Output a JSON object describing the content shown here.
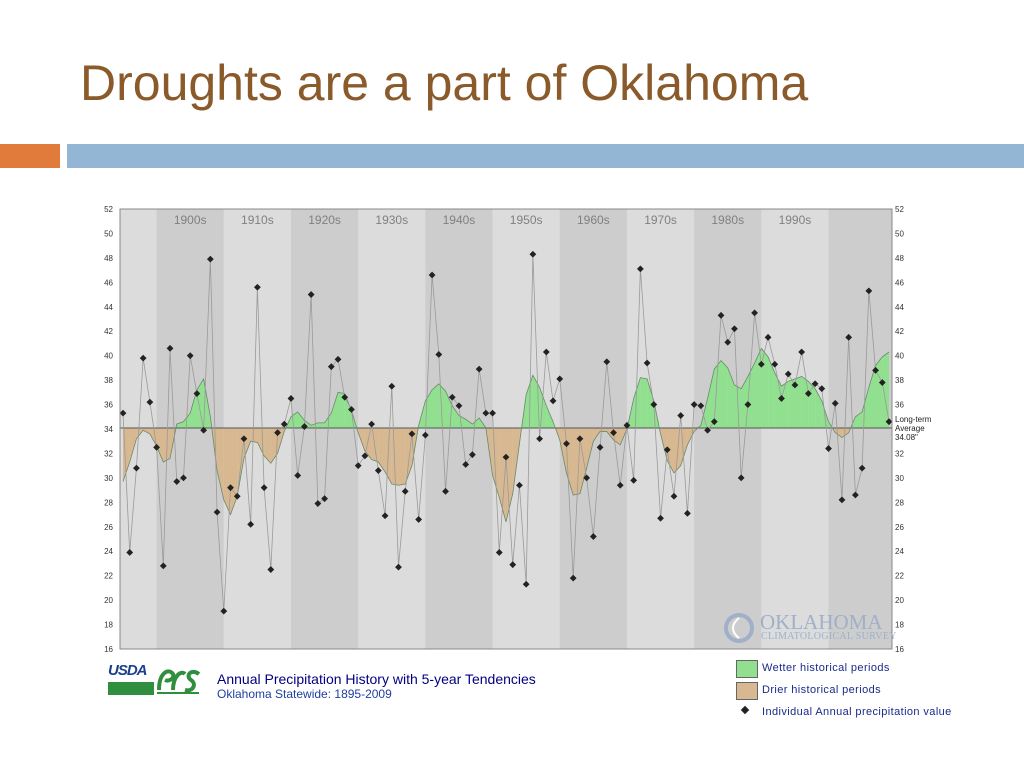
{
  "slide": {
    "title": "Droughts are a part of Oklahoma"
  },
  "colors": {
    "title": "#8b5a2b",
    "accent_orange": "#e07b3c",
    "accent_blue": "#93b6d4",
    "wet_fill": "#90e090",
    "dry_fill": "#d8b890",
    "band_dark": "#cdcdcd",
    "band_light": "#dcdcdc"
  },
  "chart_data": {
    "type": "line",
    "title": "Annual Precipitation History with 5-year Tendencies",
    "subtitle": "Oklahoma Statewide:  1895-2009",
    "xlabel": "",
    "ylabel": "",
    "xlim": [
      1895,
      2009
    ],
    "ylim": [
      16,
      52
    ],
    "y_ticks": [
      16,
      18,
      20,
      22,
      24,
      26,
      28,
      30,
      32,
      34,
      36,
      38,
      40,
      42,
      44,
      46,
      48,
      50,
      52
    ],
    "grid": false,
    "decade_bands": [
      {
        "label": "1900s",
        "start": 1900
      },
      {
        "label": "1910s",
        "start": 1910
      },
      {
        "label": "1920s",
        "start": 1920
      },
      {
        "label": "1930s",
        "start": 1930
      },
      {
        "label": "1940s",
        "start": 1940
      },
      {
        "label": "1950s",
        "start": 1950
      },
      {
        "label": "1960s",
        "start": 1960
      },
      {
        "label": "1970s",
        "start": 1970
      },
      {
        "label": "1980s",
        "start": 1980
      },
      {
        "label": "1990s",
        "start": 1990
      },
      {
        "label": "",
        "start": 2000
      }
    ],
    "average": {
      "value": 34.08,
      "label_lines": [
        "Long-term",
        "Average",
        "34.08\""
      ]
    },
    "series": [
      {
        "name": "Individual Annual precipitation value",
        "x": [
          1895,
          1896,
          1897,
          1898,
          1899,
          1900,
          1901,
          1902,
          1903,
          1904,
          1905,
          1906,
          1907,
          1908,
          1909,
          1910,
          1911,
          1912,
          1913,
          1914,
          1915,
          1916,
          1917,
          1918,
          1919,
          1920,
          1921,
          1922,
          1923,
          1924,
          1925,
          1926,
          1927,
          1928,
          1929,
          1930,
          1931,
          1932,
          1933,
          1934,
          1935,
          1936,
          1937,
          1938,
          1939,
          1940,
          1941,
          1942,
          1943,
          1944,
          1945,
          1946,
          1947,
          1948,
          1949,
          1950,
          1951,
          1952,
          1953,
          1954,
          1955,
          1956,
          1957,
          1958,
          1959,
          1960,
          1961,
          1962,
          1963,
          1964,
          1965,
          1966,
          1967,
          1968,
          1969,
          1970,
          1971,
          1972,
          1973,
          1974,
          1975,
          1976,
          1977,
          1978,
          1979,
          1980,
          1981,
          1982,
          1983,
          1984,
          1985,
          1986,
          1987,
          1988,
          1989,
          1990,
          1991,
          1992,
          1993,
          1994,
          1995,
          1996,
          1997,
          1998,
          1999,
          2000,
          2001,
          2002,
          2003,
          2004,
          2005,
          2006,
          2007,
          2008,
          2009
        ],
        "values": [
          35.3,
          23.9,
          30.8,
          39.8,
          36.2,
          32.5,
          22.8,
          40.6,
          29.7,
          30.0,
          40.0,
          36.9,
          33.9,
          47.9,
          27.2,
          19.1,
          29.2,
          28.5,
          33.2,
          26.2,
          45.6,
          29.2,
          22.5,
          33.7,
          34.4,
          36.5,
          30.2,
          34.2,
          45.0,
          27.9,
          28.3,
          39.1,
          39.7,
          36.6,
          35.6,
          31.0,
          31.8,
          34.4,
          30.6,
          26.9,
          37.5,
          22.7,
          28.9,
          33.6,
          26.6,
          33.5,
          46.6,
          40.1,
          28.9,
          36.6,
          35.9,
          31.1,
          31.9,
          38.9,
          35.3,
          35.3,
          23.9,
          31.7,
          22.9,
          29.4,
          21.3,
          48.3,
          33.2,
          40.3,
          36.3,
          38.1,
          32.8,
          21.8,
          33.2,
          30.0,
          25.2,
          32.5,
          39.5,
          33.7,
          29.4,
          34.3,
          29.8,
          47.1,
          39.4,
          36.0,
          26.7,
          32.3,
          28.5,
          35.1,
          27.1,
          36.0,
          35.9,
          33.9,
          34.6,
          43.3,
          41.1,
          42.2,
          30.0,
          36.0,
          43.5,
          39.3,
          41.5,
          39.3,
          36.5,
          38.5,
          37.6,
          40.3,
          36.9,
          37.7,
          37.3,
          32.4,
          36.1,
          28.2,
          41.5,
          28.6,
          30.8,
          45.3,
          38.8,
          37.8,
          34.6
        ]
      },
      {
        "name": "5-year Tendency",
        "x": [
          1895,
          1896,
          1897,
          1898,
          1899,
          1900,
          1901,
          1902,
          1903,
          1904,
          1905,
          1906,
          1907,
          1908,
          1909,
          1910,
          1911,
          1912,
          1913,
          1914,
          1915,
          1916,
          1917,
          1918,
          1919,
          1920,
          1921,
          1922,
          1923,
          1924,
          1925,
          1926,
          1927,
          1928,
          1929,
          1930,
          1931,
          1932,
          1933,
          1934,
          1935,
          1936,
          1937,
          1938,
          1939,
          1940,
          1941,
          1942,
          1943,
          1944,
          1945,
          1946,
          1947,
          1948,
          1949,
          1950,
          1951,
          1952,
          1953,
          1954,
          1955,
          1956,
          1957,
          1958,
          1959,
          1960,
          1961,
          1962,
          1963,
          1964,
          1965,
          1966,
          1967,
          1968,
          1969,
          1970,
          1971,
          1972,
          1973,
          1974,
          1975,
          1976,
          1977,
          1978,
          1979,
          1980,
          1981,
          1982,
          1983,
          1984,
          1985,
          1986,
          1987,
          1988,
          1989,
          1990,
          1991,
          1992,
          1993,
          1994,
          1995,
          1996,
          1997,
          1998,
          1999,
          2000,
          2001,
          2002,
          2003,
          2004,
          2005,
          2006,
          2007,
          2008,
          2009
        ],
        "values": [
          29.7,
          31.3,
          33.2,
          33.9,
          33.6,
          32.6,
          31.3,
          31.6,
          34.4,
          34.6,
          35.3,
          37.2,
          38.1,
          35.0,
          30.6,
          28.2,
          27.0,
          28.5,
          31.6,
          33.0,
          32.9,
          31.8,
          31.2,
          32.0,
          33.8,
          35.0,
          35.4,
          34.7,
          34.3,
          34.5,
          34.5,
          35.3,
          37.0,
          36.9,
          35.5,
          33.7,
          32.2,
          31.5,
          31.3,
          30.5,
          29.5,
          29.4,
          29.5,
          31.0,
          34.3,
          36.3,
          37.2,
          37.7,
          37.1,
          35.9,
          35.1,
          34.8,
          34.4,
          34.9,
          34.1,
          30.2,
          28.4,
          26.4,
          28.7,
          32.8,
          36.8,
          38.4,
          37.4,
          35.9,
          34.6,
          33.1,
          30.4,
          28.6,
          28.7,
          30.8,
          33.0,
          33.8,
          33.8,
          33.1,
          32.7,
          34.0,
          36.5,
          38.2,
          38.1,
          36.3,
          33.6,
          31.4,
          30.4,
          31.0,
          32.7,
          33.8,
          34.3,
          36.5,
          38.9,
          39.6,
          39.0,
          37.6,
          37.3,
          38.3,
          39.4,
          40.6,
          39.9,
          38.6,
          37.5,
          37.9,
          38.1,
          38.3,
          37.9,
          37.3,
          36.3,
          34.6,
          33.7,
          33.3,
          33.7,
          35.0,
          35.4,
          37.4,
          39.2,
          39.9,
          40.3
        ]
      }
    ],
    "legend": {
      "placement": "bottom-right",
      "entries": [
        {
          "label": "Wetter historical periods",
          "kind": "wet"
        },
        {
          "label": "Drier historical periods",
          "kind": "dry"
        },
        {
          "label": "Individual Annual precipitation value",
          "kind": "point"
        }
      ]
    }
  },
  "logos": {
    "usda": "USDA",
    "nrcs": "nrcs-logo",
    "ocs_name": "OKLAHOMA",
    "ocs_sub": "CLIMATOLOGICAL SURVEY"
  }
}
